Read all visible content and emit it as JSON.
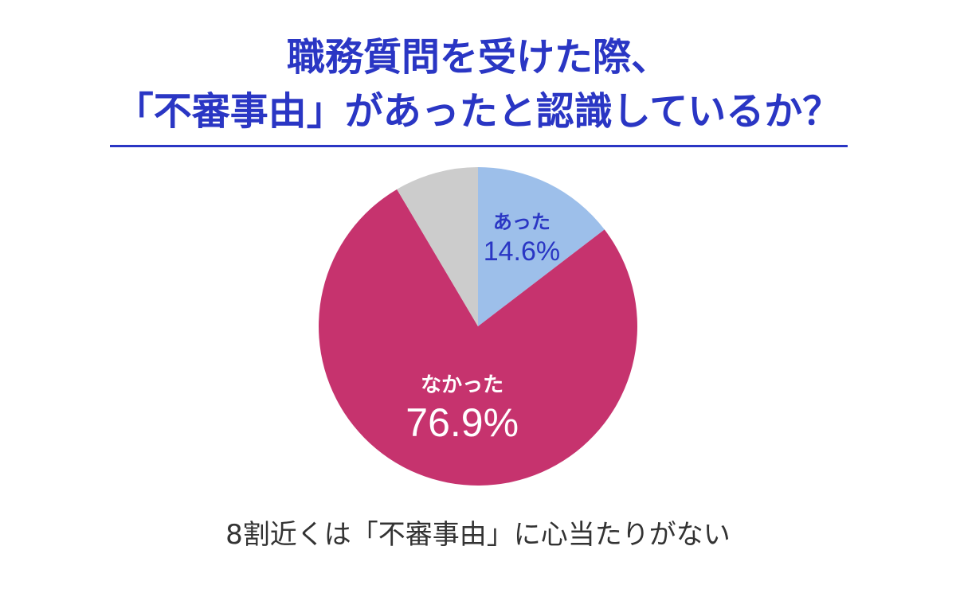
{
  "title": {
    "line1": "職務質問を受けた際、",
    "line2": "「不審事由」があったと認識しているか？"
  },
  "caption": "8割近くは「不審事由」に心当たりがない",
  "colors": {
    "title": "#2a36c4",
    "yes": "#9dbfea",
    "no": "#c6336e",
    "other": "#cccccc",
    "yes_label": "#2a36c4",
    "no_label": "#ffffff"
  },
  "chart_data": {
    "type": "pie",
    "start_angle": "12 o'clock, clockwise",
    "slices": [
      {
        "label": "あった",
        "value": 14.6,
        "display": "14.6%",
        "color": "#9dbfea",
        "label_color": "#2a36c4",
        "show_label": true
      },
      {
        "label": "なかった",
        "value": 76.9,
        "display": "76.9%",
        "color": "#c6336e",
        "label_color": "#ffffff",
        "show_label": true
      },
      {
        "label": "",
        "value": 8.5,
        "display": "",
        "color": "#cccccc",
        "label_color": "#333333",
        "show_label": false
      }
    ]
  }
}
